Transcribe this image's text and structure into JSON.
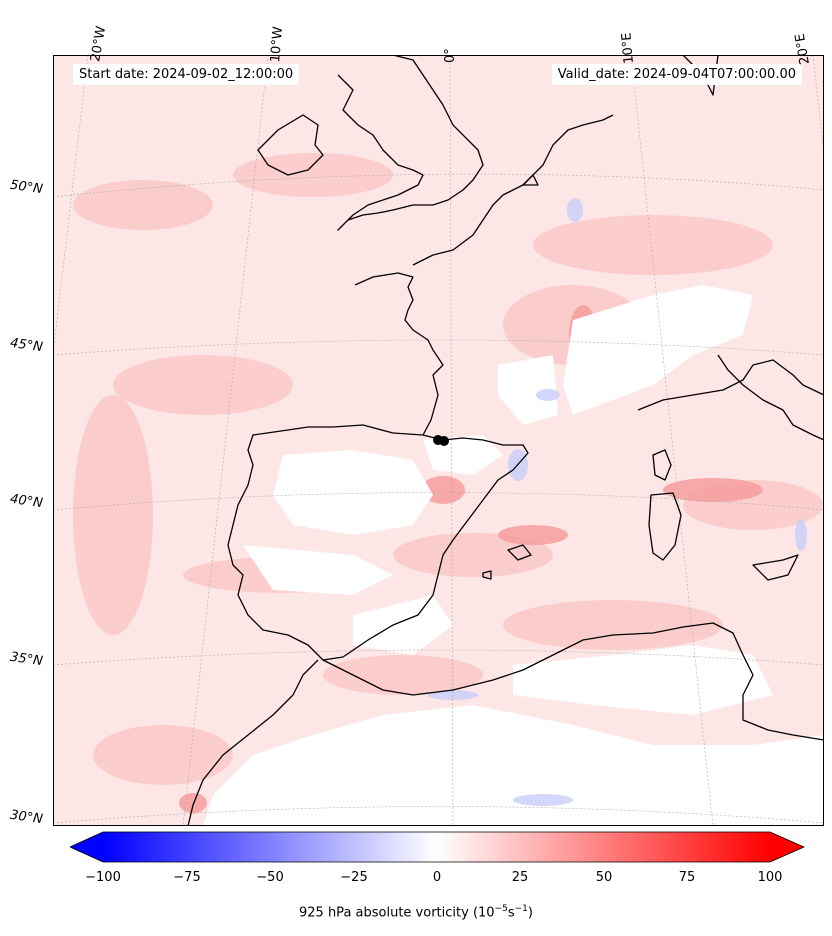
{
  "header": {
    "start_date": "Start date: 2024-09-02_12:00:00",
    "valid_date": "Valid_date: 2024-09-04T07:00:00.00"
  },
  "longitude_labels": [
    "20°W",
    "10°W",
    "0°",
    "10°E",
    "20°E"
  ],
  "latitude_labels": [
    "50°N",
    "45°N",
    "40°N",
    "35°N",
    "30°N"
  ],
  "colorbar": {
    "ticks": [
      "−100",
      "−75",
      "−50",
      "−25",
      "0",
      "25",
      "50",
      "75",
      "100"
    ],
    "min": -100,
    "max": 100,
    "colors": {
      "negative": "#0000ff",
      "zero": "#ffffff",
      "positive": "#ff0000"
    },
    "label": "925 hPa absolute vorticity (10",
    "label_exp1": "−5",
    "label_mid": "s",
    "label_exp2": "−1",
    "label_end": ")"
  },
  "map": {
    "background": "#fde8e8",
    "marker": "black-dots"
  }
}
